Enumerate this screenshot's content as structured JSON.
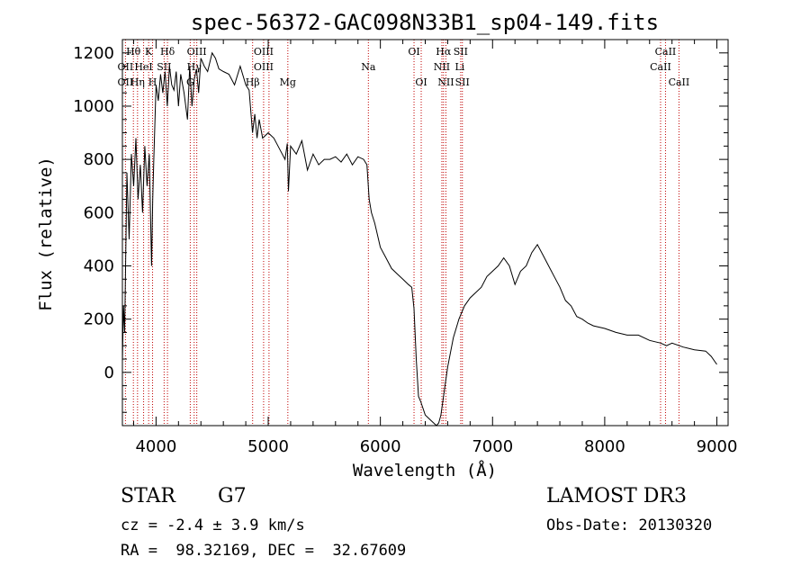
{
  "chart_data": {
    "type": "line",
    "title": "spec-56372-GAC098N33B1_sp04-149.fits",
    "xlabel": "Wavelength (Å)",
    "ylabel": "Flux (relative)",
    "xlim": [
      3700,
      9100
    ],
    "ylim": [
      -200,
      1250
    ],
    "x_ticks": [
      {
        "value": 4000,
        "label": "4000"
      },
      {
        "value": 5000,
        "label": "5000"
      },
      {
        "value": 6000,
        "label": "6000"
      },
      {
        "value": 7000,
        "label": "7000"
      },
      {
        "value": 8000,
        "label": "8000"
      },
      {
        "value": 9000,
        "label": "9000"
      }
    ],
    "y_ticks": [
      {
        "value": 0,
        "label": "0"
      },
      {
        "value": 200,
        "label": "200"
      },
      {
        "value": 400,
        "label": "400"
      },
      {
        "value": 600,
        "label": "600"
      },
      {
        "value": 800,
        "label": "800"
      },
      {
        "value": 1000,
        "label": "1000"
      },
      {
        "value": 1200,
        "label": "1200"
      }
    ],
    "spectrum": {
      "x": [
        3700,
        3710,
        3720,
        3740,
        3760,
        3780,
        3800,
        3820,
        3840,
        3860,
        3880,
        3900,
        3920,
        3940,
        3960,
        3970,
        3980,
        4000,
        4020,
        4040,
        4060,
        4080,
        4100,
        4120,
        4140,
        4160,
        4180,
        4200,
        4220,
        4250,
        4280,
        4300,
        4320,
        4340,
        4360,
        4380,
        4400,
        4430,
        4460,
        4500,
        4530,
        4560,
        4600,
        4650,
        4700,
        4750,
        4800,
        4830,
        4860,
        4880,
        4900,
        4920,
        4950,
        5000,
        5050,
        5100,
        5150,
        5170,
        5180,
        5200,
        5250,
        5300,
        5350,
        5400,
        5450,
        5500,
        5550,
        5600,
        5650,
        5700,
        5750,
        5800,
        5850,
        5880,
        5900,
        5920,
        5950,
        6000,
        6050,
        6100,
        6150,
        6200,
        6250,
        6280,
        6300,
        6320,
        6340,
        6360,
        6400,
        6450,
        6500,
        6520,
        6540,
        6560,
        6580,
        6600,
        6650,
        6700,
        6750,
        6800,
        6850,
        6900,
        6950,
        7000,
        7050,
        7100,
        7150,
        7200,
        7250,
        7300,
        7350,
        7400,
        7450,
        7500,
        7550,
        7600,
        7650,
        7700,
        7750,
        7800,
        7850,
        7900,
        8000,
        8100,
        8200,
        8300,
        8400,
        8500,
        8550,
        8600,
        8700,
        8800,
        8900,
        8950,
        9000
      ],
      "y": [
        40,
        250,
        150,
        750,
        500,
        820,
        700,
        880,
        650,
        780,
        600,
        850,
        700,
        820,
        400,
        650,
        800,
        1080,
        1020,
        1120,
        1050,
        1130,
        1000,
        1150,
        1080,
        1060,
        1130,
        1000,
        1120,
        1050,
        950,
        1150,
        1000,
        1100,
        1140,
        1050,
        1180,
        1150,
        1130,
        1200,
        1180,
        1140,
        1130,
        1120,
        1080,
        1150,
        1080,
        1060,
        900,
        970,
        880,
        950,
        880,
        900,
        880,
        840,
        800,
        860,
        680,
        850,
        820,
        870,
        760,
        820,
        780,
        800,
        800,
        810,
        790,
        820,
        780,
        810,
        800,
        780,
        650,
        600,
        560,
        470,
        430,
        390,
        370,
        350,
        330,
        320,
        240,
        50,
        -90,
        -110,
        -160,
        -180,
        -200,
        -190,
        -160,
        -100,
        -40,
        20,
        130,
        200,
        250,
        280,
        300,
        320,
        360,
        380,
        400,
        430,
        400,
        330,
        380,
        400,
        450,
        480,
        440,
        400,
        360,
        320,
        270,
        250,
        210,
        200,
        185,
        175,
        165,
        150,
        140,
        140,
        120,
        110,
        100,
        110,
        95,
        85,
        80,
        60,
        30
      ]
    },
    "spectral_lines": [
      {
        "label": "Hθ",
        "wave": 3798,
        "row": 1
      },
      {
        "label": "OII",
        "wave": 3727,
        "row": 2
      },
      {
        "label": "OII",
        "wave": 3727,
        "row": 3
      },
      {
        "label": "Hη",
        "wave": 3835,
        "row": 3
      },
      {
        "label": "HeI",
        "wave": 3889,
        "row": 2
      },
      {
        "label": "K",
        "wave": 3934,
        "row": 1
      },
      {
        "label": "H",
        "wave": 3969,
        "row": 3
      },
      {
        "label": "Hδ",
        "wave": 4102,
        "row": 1
      },
      {
        "label": "SII",
        "wave": 4072,
        "row": 2
      },
      {
        "label": "OIII",
        "wave": 4363,
        "row": 1
      },
      {
        "label": "Hγ",
        "wave": 4340,
        "row": 2
      },
      {
        "label": "G",
        "wave": 4305,
        "row": 3
      },
      {
        "label": "OIII",
        "wave": 4959,
        "row": 1
      },
      {
        "label": "OIII",
        "wave": 4959,
        "row": 2
      },
      {
        "label": "Hβ",
        "wave": 4861,
        "row": 3
      },
      {
        "label": "Mg",
        "wave": 5175,
        "row": 3
      },
      {
        "label": "Na",
        "wave": 5893,
        "row": 2
      },
      {
        "label": "OI",
        "wave": 6300,
        "row": 1
      },
      {
        "label": "OI",
        "wave": 6364,
        "row": 3
      },
      {
        "label": "Hα",
        "wave": 6563,
        "row": 1
      },
      {
        "label": "NII",
        "wave": 6548,
        "row": 2
      },
      {
        "label": "NII",
        "wave": 6584,
        "row": 3
      },
      {
        "label": "SII",
        "wave": 6716,
        "row": 1
      },
      {
        "label": "Li",
        "wave": 6708,
        "row": 2
      },
      {
        "label": "SII",
        "wave": 6731,
        "row": 3
      },
      {
        "label": "CaII",
        "wave": 8542,
        "row": 1
      },
      {
        "label": "CaII",
        "wave": 8498,
        "row": 2
      },
      {
        "label": "CaII",
        "wave": 8662,
        "row": 3
      }
    ],
    "line_wavelengths": [
      3727,
      3798,
      3835,
      3889,
      3934,
      3969,
      4072,
      4102,
      4305,
      4340,
      4363,
      4861,
      4959,
      5007,
      5175,
      5893,
      6300,
      6364,
      6548,
      6563,
      6584,
      6716,
      6731,
      8498,
      8542,
      8662
    ]
  },
  "info": {
    "object_class": "STAR",
    "subclass": "G7",
    "velocity": "cz = -2.4 ± 3.9 km/s",
    "coordinates": "RA =  98.32169, DEC =  32.67609",
    "survey": "LAMOST DR3",
    "obs_date": "Obs-Date: 20130320"
  },
  "colors": {
    "spectrum": "#000000",
    "line_markers": "#c00000",
    "axes": "#000000"
  }
}
